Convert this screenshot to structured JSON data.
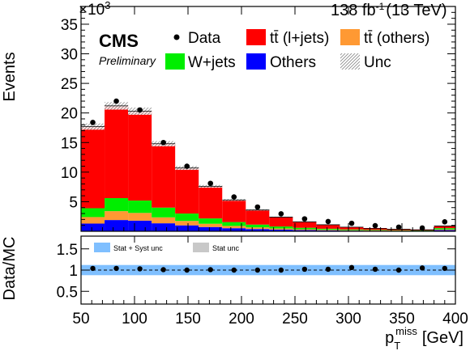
{
  "header": {
    "lumi": "138 fb",
    "lumi_sup": "-1",
    "energy": "(13 TeV)",
    "exp": "CMS",
    "status": "Preliminary",
    "scale_base": "×10",
    "scale_exp": "3"
  },
  "axes": {
    "ylabel_top": "Events",
    "ylabel_bottom": "Data/MC",
    "xlabel_main": "p",
    "xlabel_sub": "T",
    "xlabel_sup": "miss",
    "xlabel_unit": "[GeV]"
  },
  "legend": {
    "data": "Data",
    "ttbar_ljets": "tt̄ (l+jets)",
    "ttbar_others": "tt̄ (others)",
    "wjets": "W+jets",
    "others": "Others",
    "unc": "Unc",
    "stat_syst": "Stat + Syst unc",
    "stat": "Stat unc"
  },
  "colors": {
    "ttbar_ljets": "#ff0000",
    "ttbar_others": "#ff9933",
    "wjets": "#00ee00",
    "others": "#0000ff",
    "unc_band": "#7fbfff",
    "stat_band": "#c8c8c8"
  },
  "chart_data": [
    {
      "type": "bar",
      "stacked": true,
      "x_edges": [
        50,
        72,
        94,
        116,
        138,
        160,
        182,
        204,
        226,
        248,
        270,
        292,
        314,
        336,
        358,
        380,
        400
      ],
      "xlim": [
        50,
        400
      ],
      "ylim": [
        0,
        38000
      ],
      "yticks": [
        5000,
        10000,
        15000,
        20000,
        25000,
        30000,
        35000
      ],
      "ytick_labels": [
        "5",
        "10",
        "15",
        "20",
        "25",
        "30",
        "35"
      ],
      "series": [
        {
          "name": "Others",
          "values": [
            1300,
            1900,
            1800,
            1350,
            1000,
            720,
            520,
            380,
            280,
            200,
            150,
            110,
            85,
            65,
            50,
            200
          ]
        },
        {
          "name": "tt̄ (others)",
          "values": [
            1100,
            1500,
            1300,
            1000,
            750,
            550,
            380,
            270,
            190,
            140,
            100,
            75,
            55,
            40,
            30,
            110
          ]
        },
        {
          "name": "W+jets",
          "values": [
            1500,
            2200,
            2100,
            1650,
            1250,
            900,
            660,
            480,
            340,
            250,
            180,
            130,
            100,
            75,
            55,
            220
          ]
        },
        {
          "name": "tt̄ (l+jets)",
          "values": [
            13800,
            15600,
            15100,
            10800,
            7700,
            5430,
            3740,
            2470,
            1590,
            1010,
            670,
            385,
            260,
            170,
            115,
            370
          ]
        }
      ],
      "data_points": {
        "name": "Data",
        "x": [
          61,
          83,
          105,
          127,
          149,
          171,
          193,
          215,
          237,
          259,
          281,
          303,
          325,
          347,
          369,
          390
        ],
        "y": [
          18400,
          22000,
          20500,
          15000,
          11000,
          8100,
          5800,
          4100,
          2950,
          2100,
          1650,
          1350,
          950,
          700,
          550,
          1600
        ]
      }
    },
    {
      "type": "scatter",
      "x": [
        61,
        83,
        105,
        127,
        149,
        171,
        193,
        215,
        237,
        259,
        281,
        303,
        325,
        347,
        369,
        390
      ],
      "y": [
        1.04,
        1.04,
        1.03,
        1.01,
        1.0,
        1.01,
        1.0,
        1.0,
        1.0,
        1.02,
        1.02,
        1.06,
        1.02,
        1.0,
        1.05,
        1.04
      ],
      "xlim": [
        50,
        400
      ],
      "ylim": [
        0.2,
        1.8
      ],
      "yticks": [
        0.5,
        1,
        1.5
      ],
      "ytick_labels": [
        "0.5",
        "1",
        "1.5"
      ],
      "xticks": [
        50,
        100,
        150,
        200,
        250,
        300,
        350,
        400
      ],
      "xtick_labels": [
        "50",
        "100",
        "150",
        "200",
        "250",
        "300",
        "350",
        "400"
      ],
      "unc_band": [
        0.88,
        1.12
      ],
      "reference_line": 1.0
    }
  ]
}
